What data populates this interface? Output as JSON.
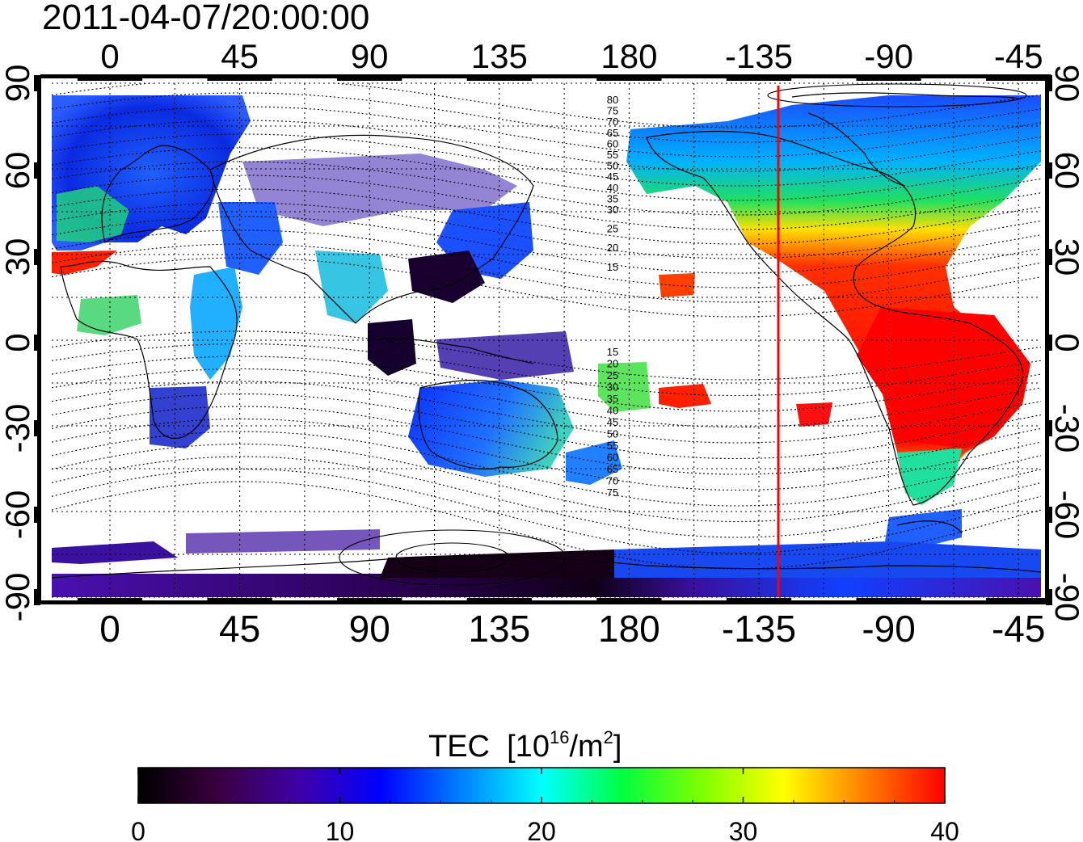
{
  "timestamp": "2011-04-07/20:00:00",
  "map": {
    "top_lon_ticks": [
      "0",
      "45",
      "90",
      "135",
      "180",
      "-135",
      "-90",
      "-45"
    ],
    "bottom_lon_ticks": [
      "0",
      "45",
      "90",
      "135",
      "180",
      "-135",
      "-90",
      "-45"
    ],
    "left_lat_ticks": [
      "90",
      "60",
      "30",
      "0",
      "-30",
      "-60",
      "-90"
    ],
    "right_lat_ticks": [
      "90",
      "60",
      "30",
      "0",
      "-30",
      "-60",
      "-90"
    ],
    "contour_labels_north": [
      "80",
      "75",
      "70",
      "65",
      "60",
      "55",
      "50",
      "45",
      "40",
      "35",
      "30",
      "25",
      "20",
      "15"
    ],
    "contour_labels_south": [
      "15",
      "20",
      "25",
      "30",
      "35",
      "40",
      "45",
      "50",
      "55",
      "60",
      "65",
      "70",
      "75"
    ],
    "marker_line_color": "#ff0000",
    "ocean_color": "#ffffff"
  },
  "colorbar": {
    "title": "TEC",
    "unit_base": "[10",
    "unit_exp": "16",
    "unit_mid": "/m",
    "unit_exp2": "2",
    "unit_end": "]",
    "tick_labels": [
      "0",
      "10",
      "20",
      "30",
      "40"
    ],
    "colors": [
      "#000000",
      "#3a0040",
      "#3f00a8",
      "#0000ff",
      "#0080ff",
      "#00ffff",
      "#00ff40",
      "#80ff00",
      "#ffff00",
      "#ff8000",
      "#ff0000"
    ]
  }
}
